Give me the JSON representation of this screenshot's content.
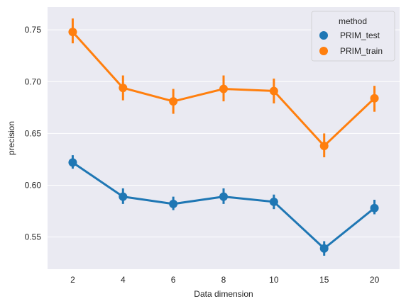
{
  "chart_data": {
    "type": "line",
    "style": "seaborn pointplot with error bars, darkgrid",
    "xlabel": "Data dimension",
    "ylabel": "precision",
    "categories": [
      "2",
      "4",
      "6",
      "8",
      "10",
      "15",
      "20"
    ],
    "ylim": [
      0.519,
      0.772
    ],
    "yticks": [
      0.55,
      0.6,
      0.65,
      0.7,
      0.75
    ],
    "ytick_labels": [
      "0.55",
      "0.60",
      "0.65",
      "0.70",
      "0.75"
    ],
    "grid": true,
    "legend": {
      "title": "method",
      "placement": "top-right"
    },
    "series": [
      {
        "name": "PRIM_test",
        "color": "#1f77b4",
        "values": [
          0.622,
          0.589,
          0.582,
          0.589,
          0.584,
          0.539,
          0.578
        ],
        "err_low": [
          0.616,
          0.582,
          0.576,
          0.582,
          0.577,
          0.532,
          0.572
        ],
        "err_high": [
          0.629,
          0.597,
          0.589,
          0.597,
          0.591,
          0.546,
          0.586
        ]
      },
      {
        "name": "PRIM_train",
        "color": "#ff7f0e",
        "values": [
          0.748,
          0.694,
          0.681,
          0.693,
          0.691,
          0.638,
          0.684
        ],
        "err_low": [
          0.737,
          0.682,
          0.669,
          0.681,
          0.679,
          0.627,
          0.671
        ],
        "err_high": [
          0.761,
          0.706,
          0.693,
          0.706,
          0.703,
          0.65,
          0.696
        ]
      }
    ]
  }
}
